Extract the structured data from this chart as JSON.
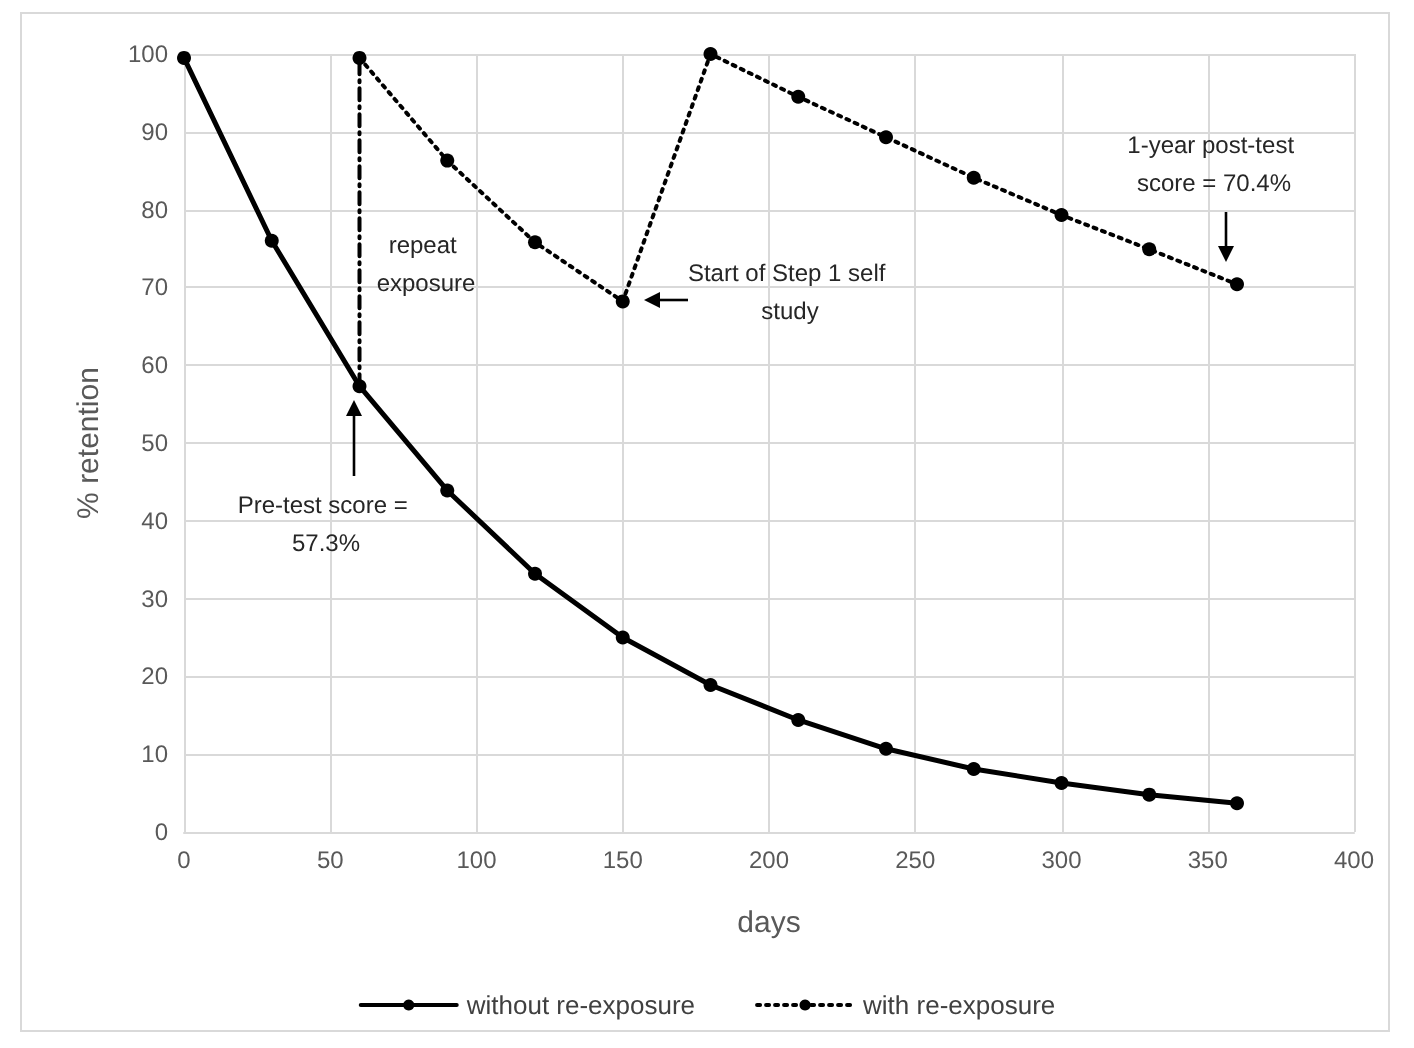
{
  "chart_data": {
    "type": "line",
    "xlabel": "days",
    "ylabel": "% retention",
    "xlim": [
      0,
      400
    ],
    "xticks": [
      0,
      50,
      100,
      150,
      200,
      250,
      300,
      350,
      400
    ],
    "ylim": [
      0,
      100
    ],
    "yticks": [
      0,
      10,
      20,
      30,
      40,
      50,
      60,
      70,
      80,
      90,
      100
    ],
    "grid": true,
    "legend": "bottom",
    "marker": "circle",
    "series": [
      {
        "name": "without re-exposure",
        "color": "#000000",
        "line_style": "solid",
        "x": [
          0,
          30,
          60,
          90,
          120,
          150,
          180,
          210,
          240,
          270,
          300,
          330,
          360
        ],
        "values": [
          99.5,
          76.0,
          57.3,
          43.9,
          33.2,
          25.0,
          18.9,
          14.4,
          10.7,
          8.1,
          6.3,
          4.8,
          3.7
        ]
      },
      {
        "name": "with re-exposure",
        "color": "#000000",
        "line_style": "dotted",
        "x": [
          60,
          90,
          120,
          150,
          180,
          210,
          240,
          270,
          300,
          330,
          360
        ],
        "values": [
          99.5,
          86.3,
          75.8,
          68.2,
          100,
          94.5,
          89.3,
          84.1,
          79.3,
          74.9,
          70.4
        ]
      },
      {
        "color": "#000000",
        "line_style": "dashed",
        "marker": "none",
        "x": [
          60,
          60
        ],
        "values": [
          57.3,
          99.5
        ]
      }
    ],
    "annotations": [
      "Pre-test score = 57.3%",
      "repeat exposure",
      "Start of Step 1 self study",
      "1-year post-test score = 70.4%"
    ]
  }
}
